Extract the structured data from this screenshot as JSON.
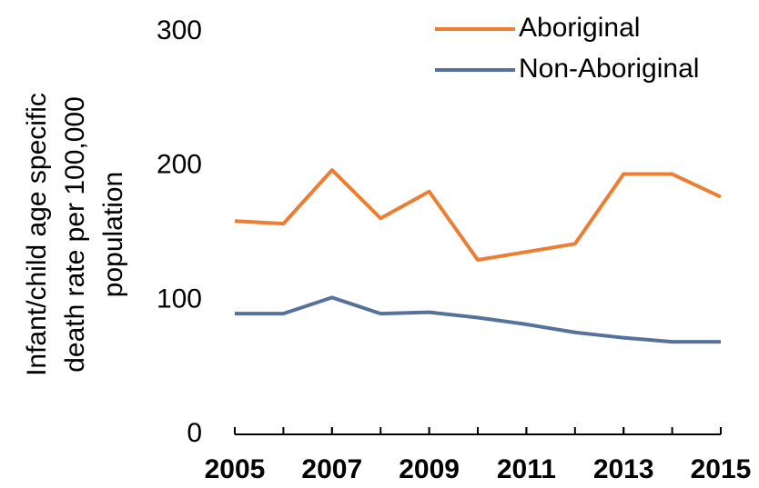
{
  "chart_data": {
    "type": "line",
    "ylabel": [
      "Infant/child age specific",
      "death rate per 100,000",
      "population"
    ],
    "x": [
      2005,
      2006,
      2007,
      2008,
      2009,
      2010,
      2011,
      2012,
      2013,
      2014,
      2015
    ],
    "series": [
      {
        "name": "Aboriginal",
        "color": "#ed7d31",
        "values": [
          159,
          157,
          197,
          161,
          181,
          130,
          136,
          142,
          194,
          194,
          177
        ]
      },
      {
        "name": "Non-Aboriginal",
        "color": "#56729a",
        "values": [
          90,
          90,
          102,
          90,
          91,
          87,
          82,
          76,
          72,
          69,
          69
        ]
      }
    ],
    "xlim": [
      2005,
      2015
    ],
    "xticks": [
      2005,
      2007,
      2009,
      2011,
      2013,
      2015
    ],
    "ylim": [
      0,
      300
    ],
    "yticks": [
      0,
      100,
      200,
      300
    ],
    "grid": false,
    "legend": "top-right"
  }
}
